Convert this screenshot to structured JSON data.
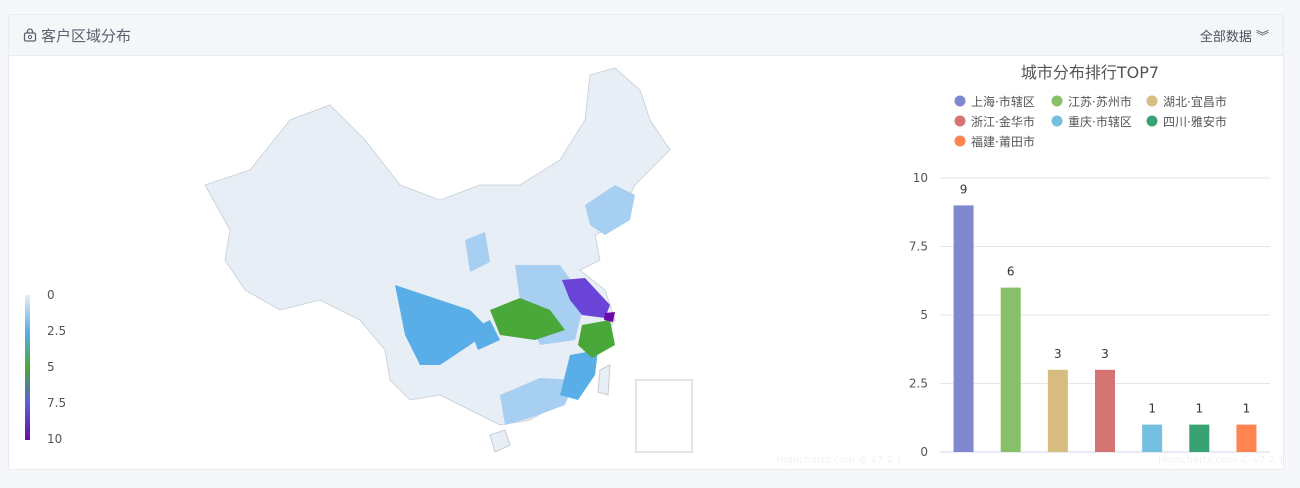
{
  "panel": {
    "title": "客户区域分布",
    "title_icon": "bag-icon",
    "all_data_label": "全部数据",
    "all_data_icon": "double-chevron-down-icon"
  },
  "map": {
    "color_axis": {
      "min": 0,
      "max": 10,
      "ticks": [
        "0",
        "2.5",
        "5",
        "7.5",
        "10"
      ],
      "colors": [
        "#e8eef6",
        "#5aaee8",
        "#4aa83a",
        "#5b5ee0",
        "#6a0aa8"
      ]
    },
    "watermark": "Highcharts.com © v7.2.1",
    "regions": [
      {
        "name": "上海",
        "value": 9
      },
      {
        "name": "江苏",
        "value": 6
      },
      {
        "name": "湖北",
        "value": 3
      },
      {
        "name": "浙江",
        "value": 3
      },
      {
        "name": "重庆",
        "value": 1
      },
      {
        "name": "四川",
        "value": 1
      },
      {
        "name": "福建",
        "value": 1
      }
    ]
  },
  "chart_data": {
    "type": "bar",
    "title": "城市分布排行TOP7",
    "categories": [
      "上海·市辖区",
      "江苏·苏州市",
      "湖北·宜昌市",
      "浙江·金华市",
      "重庆·市辖区",
      "四川·雅安市",
      "福建·莆田市"
    ],
    "values": [
      9,
      6,
      3,
      3,
      1,
      1,
      1
    ],
    "colors": [
      "#8088d0",
      "#88c06a",
      "#d6bc80",
      "#d67474",
      "#74c0e0",
      "#38a272",
      "#ff8450"
    ],
    "yticks": [
      "0",
      "2.5",
      "5",
      "7.5",
      "10"
    ],
    "ylim": [
      0,
      10
    ],
    "grid": true,
    "legend": "top",
    "watermark": "Highcharts.com © v7.2.1"
  }
}
